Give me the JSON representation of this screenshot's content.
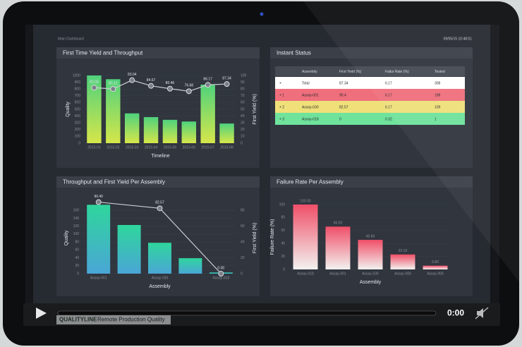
{
  "header": {
    "title": "Main Dashboard",
    "timestamp": "09/05/15 10:48:01"
  },
  "chart_data": [
    {
      "type": "bar",
      "title": "First Time Yield and Throughput",
      "x_label": "Timeline",
      "y_label": "Quality",
      "y2_label": "First Yield (%)",
      "categories": [
        "2015-01",
        "2015-02",
        "2015-03",
        "2015-04",
        "2015-05",
        "2015-06",
        "2015-07",
        "2015-08"
      ],
      "series": [
        {
          "name": "Quality",
          "type": "bar",
          "color": [
            "#4fd27c",
            "#d6e64a"
          ],
          "values": [
            1000,
            945,
            440,
            385,
            345,
            320,
            865,
            290
          ]
        },
        {
          "name": "First Yield (%)",
          "type": "line",
          "axis": "y2",
          "color": "#c9ccd1",
          "values": [
            82.03,
            80.12,
            93.04,
            84.67,
            80.46,
            76.68,
            86.17,
            87.34
          ]
        }
      ],
      "ylim": [
        0,
        1000
      ],
      "yticks": [
        0,
        100,
        200,
        300,
        400,
        500,
        600,
        700,
        800,
        900,
        1000
      ],
      "y2lim": [
        0,
        100
      ],
      "y2ticks": [
        0,
        10,
        20,
        30,
        40,
        50,
        60,
        70,
        80,
        90,
        100
      ],
      "grid": true
    },
    {
      "type": "bar",
      "title": "Throughput and First Yield Per Assembly",
      "x_label": "Assembly",
      "y_label": "Quality",
      "y2_label": "First Yield (%)",
      "categories": [
        "Assay-001",
        null,
        "Assay-030",
        null,
        "Assay-018"
      ],
      "series": [
        {
          "name": "Quality",
          "type": "bar",
          "color": [
            "#2fd69c",
            "#4aa6d6"
          ],
          "values": [
            174,
            123,
            78,
            39,
            3
          ]
        },
        {
          "name": "First Yield (%)",
          "type": "line",
          "axis": "y2",
          "color": "#c9ccd1",
          "x": [
            0,
            2,
            4
          ],
          "values": [
            90.4,
            82.57,
            0
          ],
          "value_labels": [
            "90.40",
            "82.57",
            "0.00"
          ]
        }
      ],
      "ylim": [
        0,
        180
      ],
      "yticks": [
        0,
        20,
        40,
        60,
        80,
        100,
        120,
        140,
        160
      ],
      "y2lim": [
        0,
        90
      ],
      "y2ticks": [
        0,
        20,
        40,
        60,
        80
      ],
      "grid": true
    },
    {
      "type": "bar",
      "title": "Failure Rate Per Assembly",
      "x_label": "Assembly",
      "y_label": "Failure Rate (%)",
      "categories": [
        "Assay-018",
        "Assay-001",
        "Assay-030",
        "Assay-008",
        "Assay-006"
      ],
      "series": [
        {
          "name": "Failure Rate (%)",
          "type": "bar",
          "color": [
            "#f04f68",
            "#f2f2f0"
          ],
          "values": [
            100,
            66,
            45.6,
            23.1,
            5.8
          ],
          "value_labels": [
            "100.00",
            "66.00",
            "45.60",
            "23.10",
            "5.80"
          ]
        }
      ],
      "ylim": [
        0,
        100
      ],
      "yticks": [
        0,
        20,
        40,
        60,
        80,
        100
      ],
      "grid": true
    }
  ],
  "table": {
    "title": "Instant Status",
    "columns": [
      "Assembly",
      "First Yield (%)",
      "Failur Rate (%)",
      "Tested"
    ],
    "rows": [
      {
        "color": "#ffffff",
        "cells": [
          "+",
          "Total",
          "87.34",
          "6.17",
          "308"
        ]
      },
      {
        "color": "#ef6f7c",
        "cells": [
          "+ 1",
          "Assay-001",
          "90.4",
          "6.17",
          "198"
        ]
      },
      {
        "color": "#efe07a",
        "cells": [
          "+ 2",
          "Assay-030",
          "82.57",
          "6.17",
          "109"
        ]
      },
      {
        "color": "#6fe29c",
        "cells": [
          "+ 3",
          "Assay-018",
          "0",
          "0.32",
          "1"
        ]
      }
    ]
  },
  "player": {
    "time": "0:00",
    "brand": "QUALITYLINE",
    "caption": "Remote Production Quality"
  }
}
